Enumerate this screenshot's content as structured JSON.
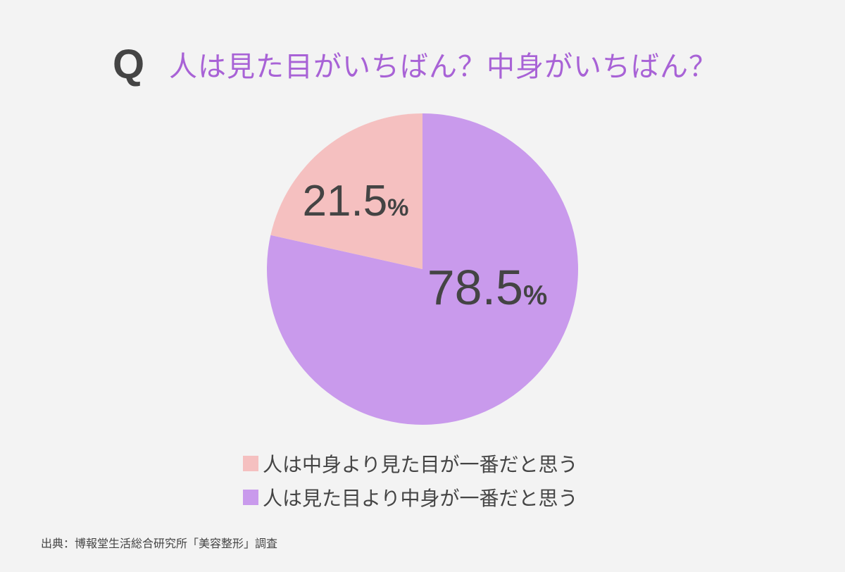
{
  "header": {
    "q_label": "Q",
    "title": "人は見た目がいちばん？中身がいちばん？"
  },
  "chart_data": {
    "type": "pie",
    "title": "人は見た目がいちばん？中身がいちばん？",
    "slices": [
      {
        "label": "人は見た目より中身が一番だと思う",
        "value": 78.5,
        "value_label": "78.5",
        "color": "#c99aec"
      },
      {
        "label": "人は中身より見た目が一番だと思う",
        "value": 21.5,
        "value_label": "21.5",
        "color": "#f5c0c0"
      }
    ],
    "unit": "%",
    "legend_position": "bottom"
  },
  "legend": [
    {
      "label": "人は中身より見た目が一番だと思う",
      "color": "#f5c0c0"
    },
    {
      "label": "人は見た目より中身が一番だと思う",
      "color": "#c99aec"
    }
  ],
  "source": "出典：博報堂生活総合研究所「美容整形」調査"
}
